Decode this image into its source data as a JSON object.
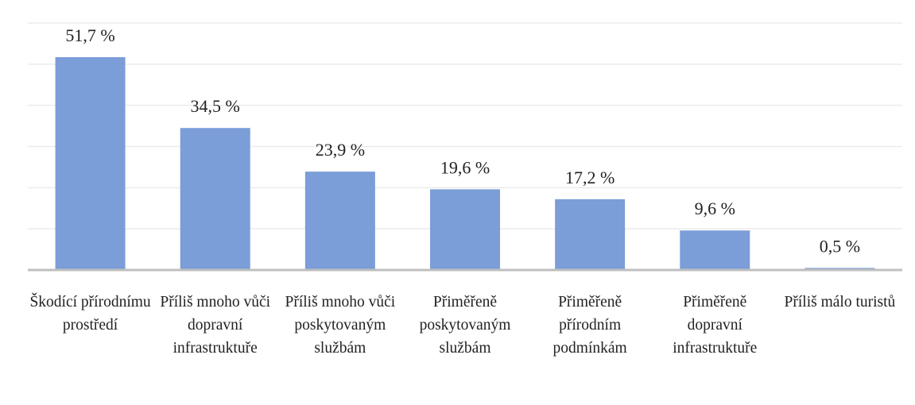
{
  "chart_data": {
    "type": "bar",
    "categories": [
      "Škodící přírodnímu prostředí",
      "Příliš mnoho vůči dopravní infrastruktuře",
      "Příliš mnoho vůči poskytovaným službám",
      "Přiměřeně poskytovaným službám",
      "Přiměřeně přírodním podmínkám",
      "Přiměřeně dopravní infrastruktuře",
      "Příliš málo turistů"
    ],
    "values": [
      51.7,
      34.5,
      23.9,
      19.6,
      17.2,
      9.6,
      0.5
    ],
    "value_labels": [
      "51,7 %",
      "34,5 %",
      "23,9 %",
      "19,6 %",
      "17,2 %",
      "9,6 %",
      "0,5 %"
    ],
    "color": "#7b9dd8",
    "ylim": [
      0,
      60
    ],
    "yticks": [
      0,
      10,
      20,
      30,
      40,
      50,
      60
    ],
    "grid": true
  }
}
